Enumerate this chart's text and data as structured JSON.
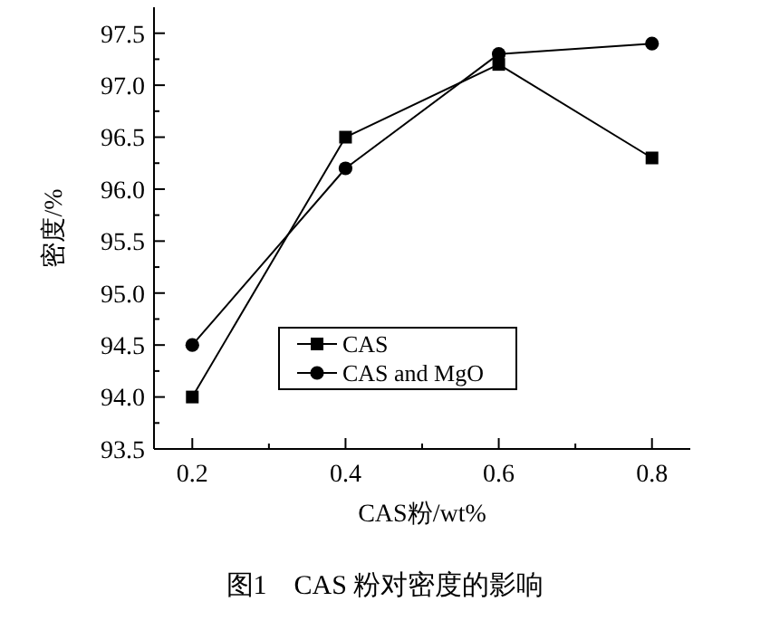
{
  "chart_data": {
    "type": "line",
    "title": "图1　CAS 粉对密度的影响",
    "xlabel": "CAS粉/wt%",
    "ylabel": "密度/%",
    "x": [
      0.2,
      0.4,
      0.6,
      0.8
    ],
    "series": [
      {
        "name": "CAS",
        "color": "#000000",
        "marker": "square",
        "values": [
          94.0,
          96.5,
          97.2,
          96.3
        ]
      },
      {
        "name": "CAS and MgO",
        "color": "#000000",
        "marker": "circle",
        "values": [
          94.5,
          96.2,
          97.3,
          97.4
        ]
      }
    ],
    "xlim": [
      0.15,
      0.85
    ],
    "xticks": [
      {
        "value": 0.2,
        "label": "0.2"
      },
      {
        "value": 0.3,
        "label": null
      },
      {
        "value": 0.4,
        "label": "0.4"
      },
      {
        "value": 0.5,
        "label": null
      },
      {
        "value": 0.6,
        "label": "0.6"
      },
      {
        "value": 0.7,
        "label": null
      },
      {
        "value": 0.8,
        "label": "0.8"
      }
    ],
    "ylim": [
      93.5,
      97.75
    ],
    "yticks": [
      {
        "value": 93.5,
        "label": "93.5"
      },
      {
        "value": 93.75,
        "label": null
      },
      {
        "value": 94.0,
        "label": "94.0"
      },
      {
        "value": 94.25,
        "label": null
      },
      {
        "value": 94.5,
        "label": "94.5"
      },
      {
        "value": 94.75,
        "label": null
      },
      {
        "value": 95.0,
        "label": "95.0"
      },
      {
        "value": 95.25,
        "label": null
      },
      {
        "value": 95.5,
        "label": "95.5"
      },
      {
        "value": 95.75,
        "label": null
      },
      {
        "value": 96.0,
        "label": "96.0"
      },
      {
        "value": 96.25,
        "label": null
      },
      {
        "value": 96.5,
        "label": "96.5"
      },
      {
        "value": 96.75,
        "label": null
      },
      {
        "value": 97.0,
        "label": "97.0"
      },
      {
        "value": 97.25,
        "label": null
      },
      {
        "value": 97.5,
        "label": "97.5"
      }
    ],
    "legend": "bottom left",
    "grid": false,
    "line_style": "solid"
  }
}
